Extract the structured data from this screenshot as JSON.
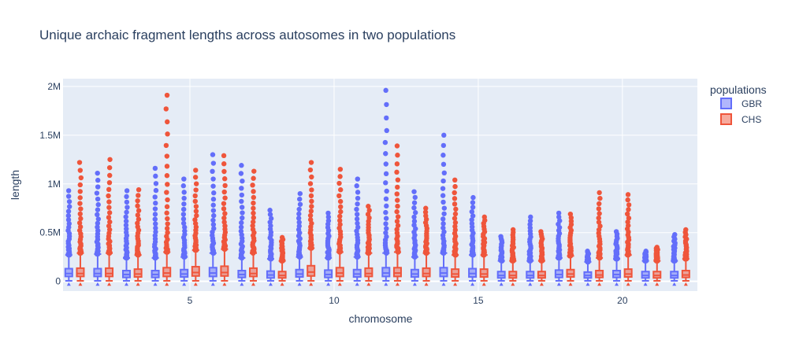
{
  "chart_data": {
    "type": "box",
    "title": "Unique archaic fragment lengths across autosomes in two populations",
    "xlabel": "chromosome",
    "ylabel": "length",
    "xlim": [
      0.6,
      22.6
    ],
    "ylim": [
      -100000,
      2080000
    ],
    "x_ticks": [
      5,
      10,
      15,
      20
    ],
    "y_ticks": [
      {
        "value": 0,
        "label": "0"
      },
      {
        "value": 500000,
        "label": "0.5M"
      },
      {
        "value": 1000000,
        "label": "1M"
      },
      {
        "value": 1500000,
        "label": "1.5M"
      },
      {
        "value": 2000000,
        "label": "2M"
      }
    ],
    "grid": true,
    "legend_title": "populations",
    "legend_position": "top-right",
    "chromosomes": [
      1,
      2,
      3,
      4,
      5,
      6,
      7,
      8,
      9,
      10,
      11,
      12,
      13,
      14,
      15,
      16,
      17,
      18,
      19,
      20,
      21,
      22
    ],
    "series": [
      {
        "name": "GBR",
        "color": "#636efa",
        "q1": [
          50000,
          50000,
          40000,
          40000,
          45000,
          50000,
          40000,
          35000,
          45000,
          40000,
          45000,
          50000,
          45000,
          50000,
          45000,
          35000,
          35000,
          40000,
          35000,
          40000,
          35000,
          35000
        ],
        "median": [
          80000,
          80000,
          70000,
          70000,
          75000,
          85000,
          70000,
          65000,
          75000,
          70000,
          75000,
          85000,
          75000,
          85000,
          80000,
          60000,
          60000,
          70000,
          60000,
          70000,
          60000,
          60000
        ],
        "q3": [
          130000,
          130000,
          110000,
          110000,
          120000,
          140000,
          110000,
          105000,
          120000,
          115000,
          120000,
          140000,
          120000,
          140000,
          130000,
          100000,
          100000,
          115000,
          95000,
          110000,
          100000,
          100000
        ],
        "whisker_low": [
          5000,
          5000,
          5000,
          5000,
          5000,
          5000,
          5000,
          5000,
          5000,
          5000,
          5000,
          5000,
          5000,
          5000,
          5000,
          5000,
          5000,
          5000,
          5000,
          5000,
          5000,
          5000
        ],
        "whisker_high": [
          270000,
          280000,
          240000,
          240000,
          250000,
          290000,
          240000,
          230000,
          250000,
          240000,
          250000,
          290000,
          250000,
          290000,
          270000,
          210000,
          210000,
          240000,
          200000,
          230000,
          210000,
          210000
        ],
        "outlier_max": [
          930000,
          1110000,
          930000,
          1160000,
          1050000,
          1300000,
          1190000,
          730000,
          900000,
          700000,
          1050000,
          1960000,
          920000,
          1500000,
          860000,
          460000,
          660000,
          700000,
          310000,
          510000,
          310000,
          480000
        ]
      },
      {
        "name": "CHS",
        "color": "#ef553b",
        "q1": [
          50000,
          50000,
          45000,
          50000,
          55000,
          55000,
          50000,
          35000,
          55000,
          50000,
          50000,
          50000,
          50000,
          45000,
          45000,
          35000,
          35000,
          45000,
          40000,
          45000,
          35000,
          40000
        ],
        "median": [
          80000,
          80000,
          75000,
          85000,
          90000,
          90000,
          80000,
          60000,
          95000,
          85000,
          80000,
          85000,
          80000,
          75000,
          75000,
          60000,
          60000,
          75000,
          65000,
          75000,
          60000,
          65000
        ],
        "q3": [
          135000,
          135000,
          125000,
          140000,
          150000,
          155000,
          135000,
          100000,
          160000,
          140000,
          135000,
          140000,
          135000,
          125000,
          125000,
          100000,
          100000,
          120000,
          110000,
          125000,
          100000,
          110000
        ],
        "whisker_low": [
          5000,
          5000,
          5000,
          5000,
          5000,
          5000,
          5000,
          5000,
          5000,
          5000,
          5000,
          5000,
          5000,
          5000,
          5000,
          5000,
          5000,
          5000,
          5000,
          5000,
          5000,
          5000
        ],
        "whisker_high": [
          290000,
          290000,
          270000,
          300000,
          320000,
          330000,
          290000,
          210000,
          340000,
          300000,
          290000,
          300000,
          290000,
          270000,
          270000,
          210000,
          210000,
          260000,
          240000,
          270000,
          210000,
          230000
        ],
        "outlier_max": [
          1220000,
          1250000,
          940000,
          1910000,
          1140000,
          1290000,
          1130000,
          450000,
          1220000,
          1150000,
          770000,
          1390000,
          750000,
          1040000,
          660000,
          530000,
          510000,
          690000,
          910000,
          890000,
          350000,
          530000
        ]
      }
    ]
  }
}
